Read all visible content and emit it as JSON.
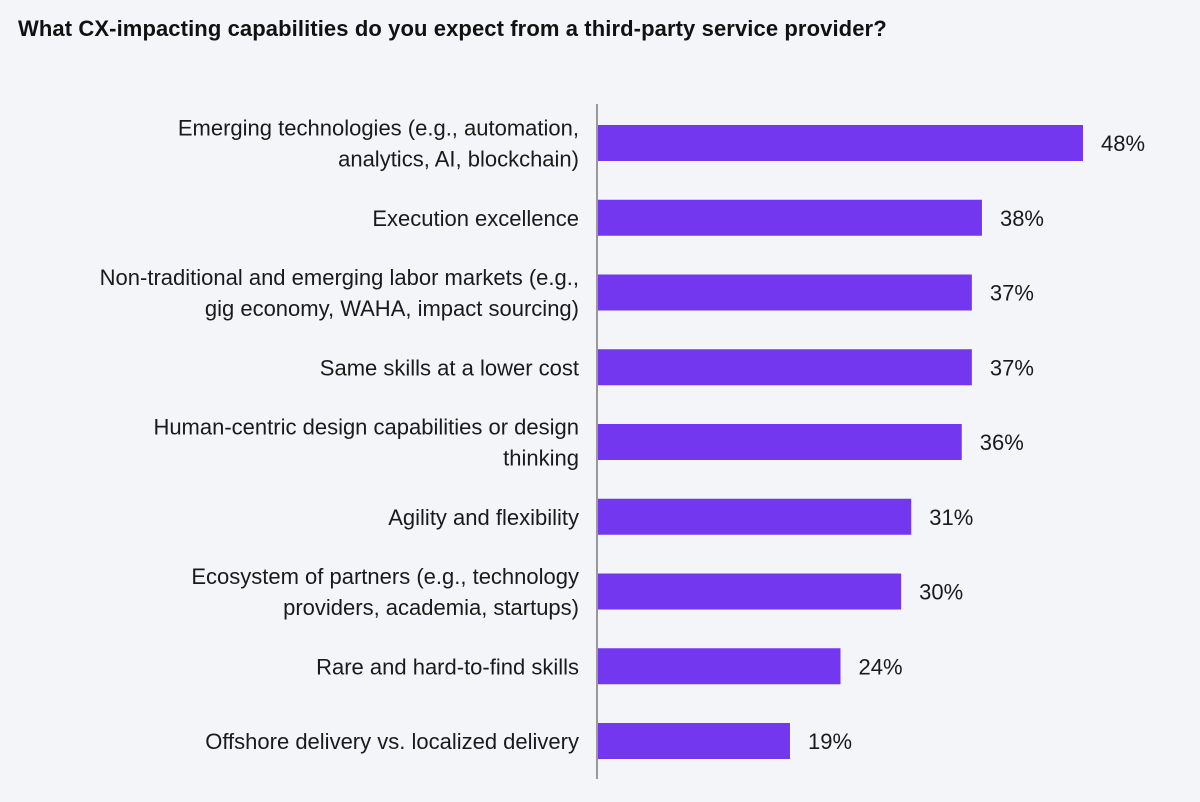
{
  "chart_data": {
    "type": "bar",
    "orientation": "horizontal",
    "title": "What CX-impacting capabilities do you expect from a third-party service provider?",
    "categories": [
      [
        "Emerging technologies (e.g., automation,",
        "analytics, AI, blockchain)"
      ],
      [
        "Execution excellence"
      ],
      [
        "Non-traditional and emerging labor markets (e.g.,",
        "gig economy, WAHA, impact sourcing)"
      ],
      [
        "Same skills at a lower cost"
      ],
      [
        "Human-centric design capabilities or design",
        "thinking"
      ],
      [
        "Agility and flexibility"
      ],
      [
        "Ecosystem of partners (e.g., technology",
        "providers, academia, startups)"
      ],
      [
        "Rare and hard-to-find skills"
      ],
      [
        "Offshore delivery vs. localized delivery"
      ]
    ],
    "values": [
      48,
      38,
      37,
      37,
      36,
      31,
      30,
      24,
      19
    ],
    "value_labels": [
      "48%",
      "38%",
      "37%",
      "37%",
      "36%",
      "31%",
      "30%",
      "24%",
      "19%"
    ],
    "unit": "%",
    "xlim": [
      0,
      48
    ],
    "bar_color": "#7337f0",
    "axis_color": "#999999",
    "grid": false,
    "legend": false
  }
}
